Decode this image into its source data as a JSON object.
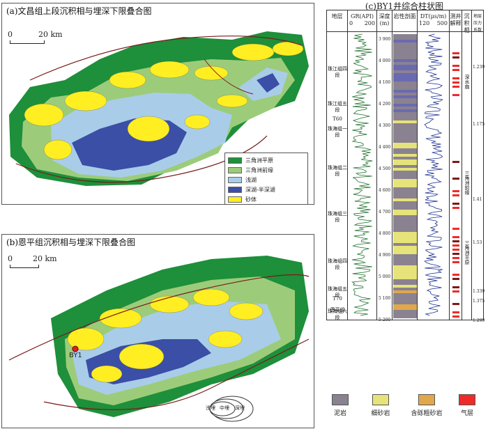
{
  "panel_a": {
    "title": "(a)文昌组上段沉积相与埋深下限叠合图",
    "scale_zero": "0",
    "scale_km": "20 km"
  },
  "panel_b": {
    "title": "(b)恩平组沉积相与埋深下限叠合图",
    "scale_zero": "0",
    "scale_km": "20 km",
    "well_label": "BY1",
    "inset_labels": [
      "浅埋",
      "中埋",
      "深埋"
    ]
  },
  "legend": {
    "items": [
      {
        "label": "三角洲平原",
        "color": "#1e8f3a"
      },
      {
        "label": "三角洲前缘",
        "color": "#9ccc7a"
      },
      {
        "label": "浅湖",
        "color": "#a9cde8"
      },
      {
        "label": "深湖-半深湖",
        "color": "#3b4fa6"
      },
      {
        "label": "砂体",
        "color": "#ffee22"
      }
    ]
  },
  "panel_c": {
    "title": "(c)BY1井综合柱状图",
    "headers": {
      "stratum": "地层",
      "gr": "GR(API)",
      "gr_min": "0",
      "gr_max": "200",
      "depth": "深度",
      "depth_unit": "(m)",
      "lith": "岩性剖面",
      "dt": "DT(μs/m)",
      "dt_min": "120",
      "dt_max": "500",
      "interp": "测井解释",
      "facies": "沉积相",
      "pressure": "地层压力系数"
    },
    "depth_ticks": [
      "3 900",
      "4 000",
      "4 100",
      "4 200",
      "4 300",
      "4 400",
      "4 500",
      "4 600",
      "4 700",
      "4 800",
      "4 900",
      "5 000",
      "5 100",
      "5 200"
    ],
    "stages": [
      {
        "name": "珠江组四段"
      },
      {
        "name": "珠江组五段"
      },
      {
        "name": "T60"
      },
      {
        "name": "珠海组一段"
      },
      {
        "name": "珠海组二段"
      },
      {
        "name": "珠海组三段"
      },
      {
        "name": "珠海组四段"
      },
      {
        "name": "珠海组五段"
      },
      {
        "name": "珠海组六段"
      },
      {
        "name": "T70"
      },
      {
        "name": "恩平组"
      }
    ],
    "facies": [
      "深水扇",
      "三角洲前缘",
      "三角洲平原"
    ],
    "pressure": [
      "1.239",
      "1.175",
      "1.41",
      "1.53",
      "1.339",
      "1.375",
      "1.299"
    ]
  },
  "bottom_legend": [
    {
      "label": "泥岩",
      "color": "#8a8290"
    },
    {
      "label": "细砂岩",
      "color": "#e6e37a"
    },
    {
      "label": "含砾粗砂岩",
      "color": "#e0a84a"
    },
    {
      "label": "气层",
      "color": "#ee2a2a"
    }
  ]
}
